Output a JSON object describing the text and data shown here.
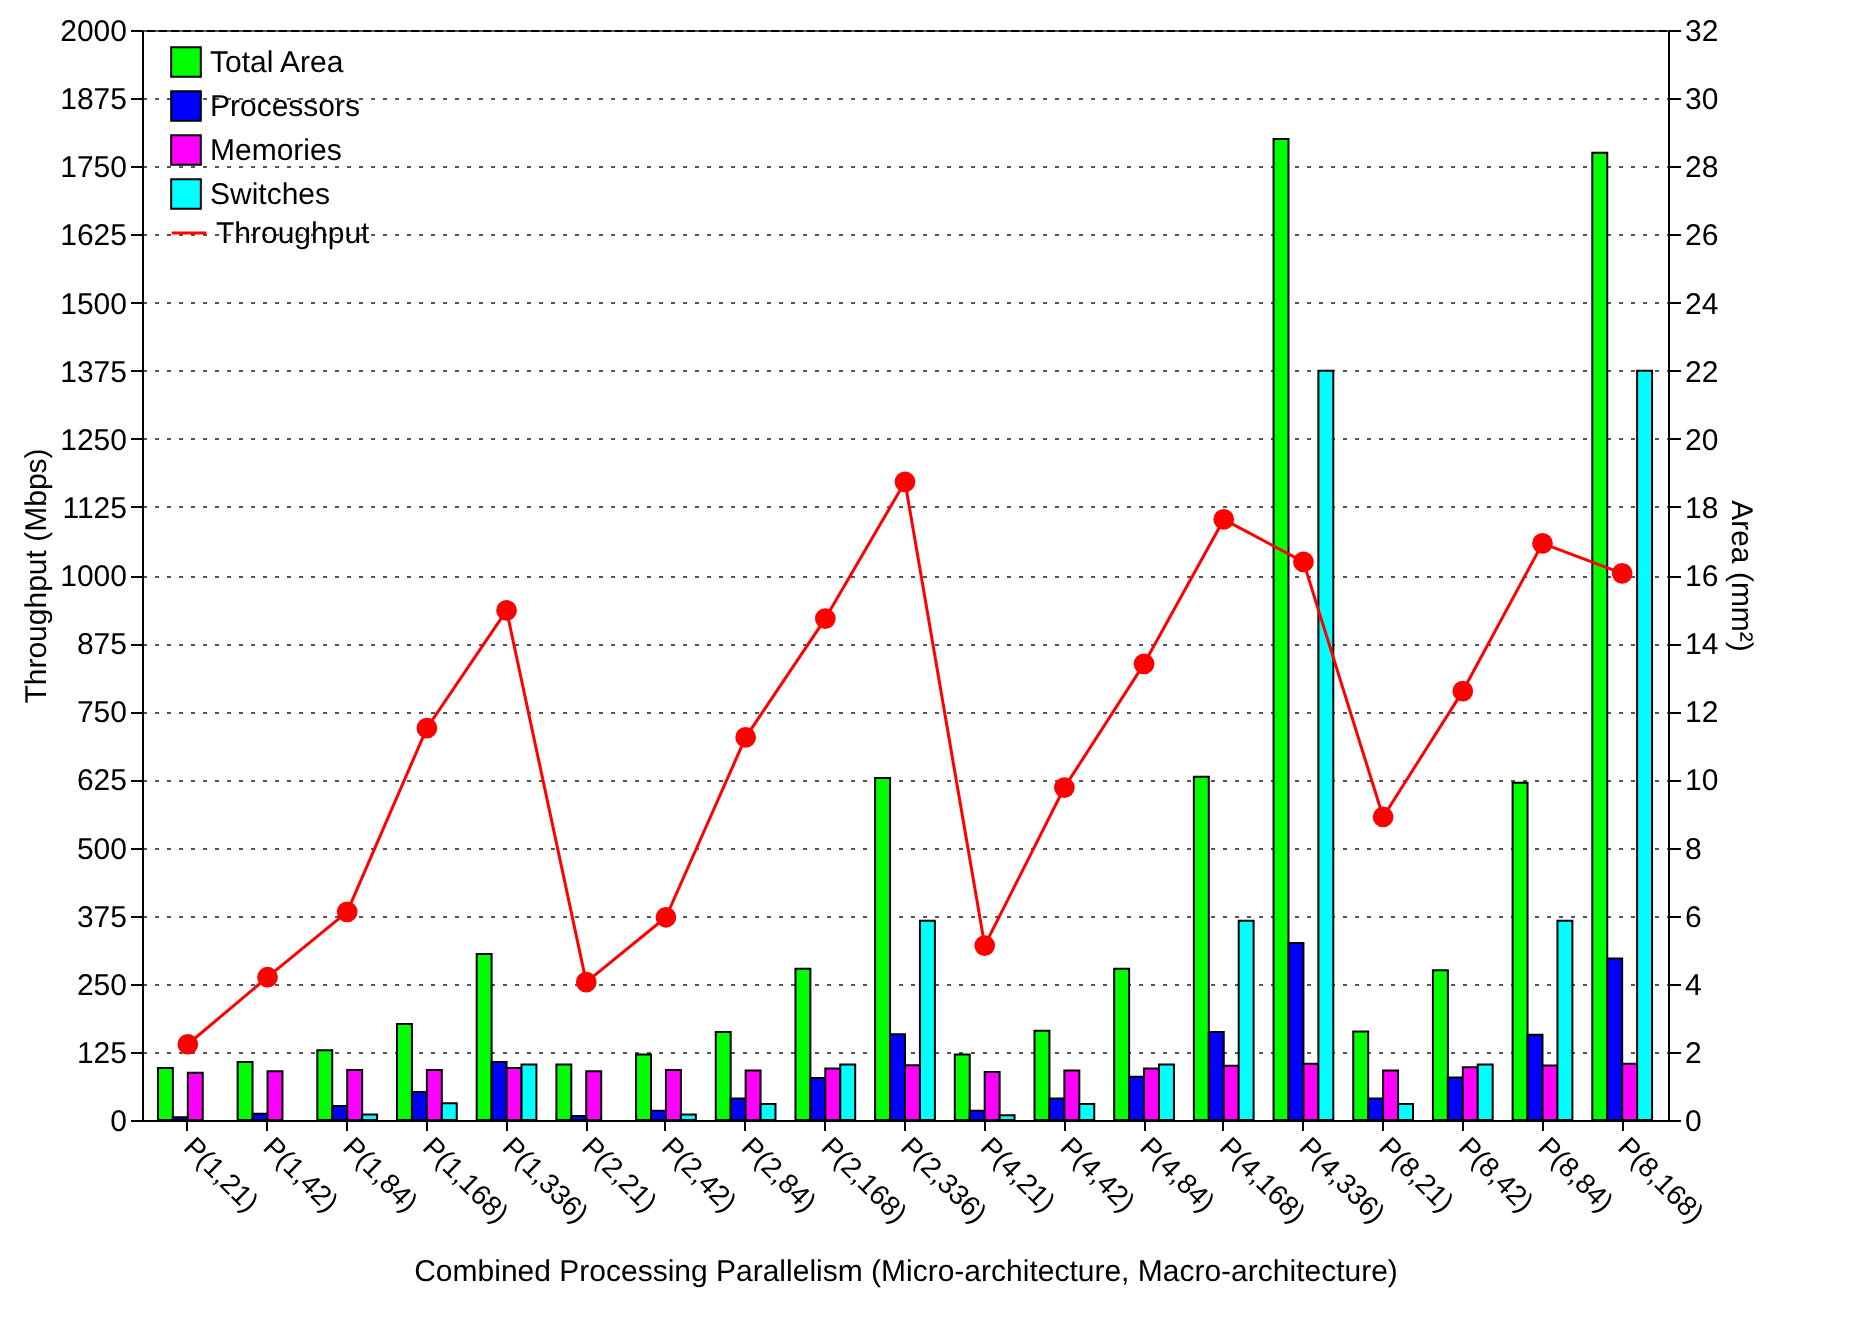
{
  "chart_data": {
    "type": "bar",
    "xlabel": "Combined Processing Parallelism (Micro-architecture, Macro-architecture)",
    "ylabel": "Throughput (Mbps)",
    "y2label": "Area (mm²)",
    "categories": [
      "P(1,21)",
      "P(1,42)",
      "P(1,84)",
      "P(1,168)",
      "P(1,336)",
      "P(2,21)",
      "P(2,42)",
      "P(2,84)",
      "P(2,168)",
      "P(2,336)",
      "P(4,21)",
      "P(4,42)",
      "P(4,84)",
      "P(4,168)",
      "P(4,336)",
      "P(8,21)",
      "P(8,42)",
      "P(8,84)",
      "P(8,168)"
    ],
    "series": [
      {
        "name": "Total Area",
        "type": "bar",
        "axis": "y2",
        "color": "#00ff00",
        "values": [
          1.53,
          1.7,
          2.05,
          2.82,
          4.87,
          1.63,
          1.92,
          2.58,
          4.44,
          10.04,
          1.92,
          2.62,
          4.44,
          10.08,
          28.8,
          2.6,
          4.4,
          9.9,
          28.4
        ]
      },
      {
        "name": "Processors",
        "type": "bar",
        "axis": "y2",
        "color": "#0000ff",
        "values": [
          0.08,
          0.18,
          0.41,
          0.82,
          1.7,
          0.12,
          0.27,
          0.63,
          1.23,
          2.52,
          0.27,
          0.63,
          1.27,
          2.58,
          5.2,
          0.63,
          1.25,
          2.5,
          4.74
        ]
      },
      {
        "name": "Memories",
        "type": "bar",
        "axis": "y2",
        "color": "#ff00ff",
        "values": [
          1.39,
          1.43,
          1.47,
          1.47,
          1.53,
          1.43,
          1.47,
          1.45,
          1.51,
          1.61,
          1.41,
          1.45,
          1.51,
          1.59,
          1.65,
          1.45,
          1.55,
          1.6,
          1.65
        ]
      },
      {
        "name": "Switches",
        "type": "bar",
        "axis": "y2",
        "color": "#00ffff",
        "values": [
          null,
          null,
          0.16,
          0.49,
          1.63,
          null,
          0.16,
          0.47,
          1.63,
          5.85,
          0.14,
          0.47,
          1.63,
          5.85,
          22,
          0.47,
          1.63,
          5.85,
          22
        ]
      },
      {
        "name": "Throughput",
        "type": "line",
        "color": "#ff0000",
        "values": [
          139,
          262,
          382,
          719,
          935,
          253,
          372,
          702,
          920,
          1171,
          320,
          610,
          837,
          1102,
          1024,
          556,
          787,
          1058,
          1003
        ]
      }
    ],
    "ylim": [
      0,
      2000
    ],
    "yticks": [
      0,
      125,
      250,
      375,
      500,
      625,
      750,
      875,
      1000,
      1125,
      1250,
      1375,
      1500,
      1625,
      1750,
      1875,
      2000
    ],
    "y2lim": [
      0,
      32
    ],
    "y2ticks": [
      0,
      2,
      4,
      6,
      8,
      10,
      12,
      14,
      16,
      18,
      20,
      22,
      24,
      26,
      28,
      30,
      32
    ],
    "grid": "y",
    "legend": "top left",
    "marker": "circle",
    "line_style": "solid"
  }
}
